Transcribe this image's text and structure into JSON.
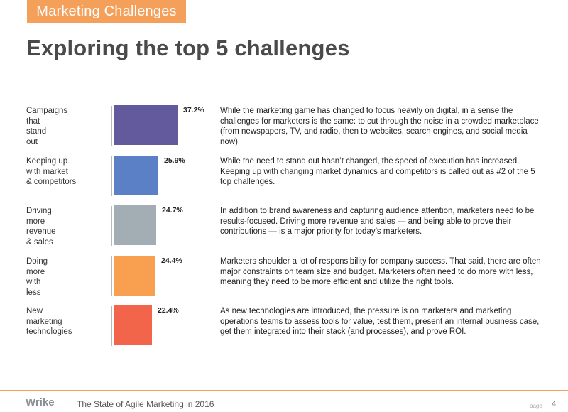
{
  "header": {
    "tag": "Marketing Challenges",
    "title": "Exploring the top 5 challenges"
  },
  "chart_data": {
    "type": "bar",
    "orientation": "horizontal",
    "categories": [
      "Campaigns that stand out",
      "Keeping up with market & competitors",
      "Driving more revenue & sales",
      "Doing more with less",
      "New marketing technologies"
    ],
    "values": [
      37.2,
      25.9,
      24.7,
      24.4,
      22.4
    ],
    "value_labels": [
      "37.2%",
      "25.9%",
      "24.7%",
      "24.4%",
      "22.4%"
    ],
    "colors": [
      "#635a9e",
      "#5b80c5",
      "#a2adb4",
      "#f8a050",
      "#f2654a"
    ],
    "grid": false,
    "title": "",
    "xlabel": "",
    "ylabel": ""
  },
  "rows": [
    {
      "label_lines": [
        "Campaigns",
        "that",
        "stand",
        "out"
      ],
      "description": "While the marketing game has changed to focus heavily on digital, in a sense the challenges for marketers is the same: to cut through the noise in a crowded marketplace (from newspapers, TV, and radio, then to websites, search engines, and social media now)."
    },
    {
      "label_lines": [
        "Keeping up",
        "with market",
        "& competitors"
      ],
      "description": "While the need to stand out hasn’t changed, the speed of execution has increased. Keeping up with changing market dynamics and competitors is called out as #2 of the 5 top challenges."
    },
    {
      "label_lines": [
        "Driving",
        "more",
        "revenue",
        "& sales"
      ],
      "description": "In addition to brand awareness and capturing audience attention, marketers need to be results-focused. Driving more revenue and sales — and being able to prove their contributions — is a major priority for today’s marketers."
    },
    {
      "label_lines": [
        "Doing",
        "more",
        "with",
        "less"
      ],
      "description": "Marketers shoulder a lot of responsibility for company success. That said, there are often major constraints on team size and budget. Marketers often need to do more with less, meaning they need to be more efficient and utilize the right tools."
    },
    {
      "label_lines": [
        "New",
        "marketing",
        "technologies"
      ],
      "description": "As new technologies are introduced, the pressure is on marketers and marketing operations teams to assess tools for value, test them, present an internal business case, get them integrated into their stack (and processes), and prove ROI."
    }
  ],
  "footer": {
    "logo": "Wrike",
    "report_title": "The State of Agile Marketing in 2016",
    "page_word": "page",
    "page_number": "4"
  }
}
